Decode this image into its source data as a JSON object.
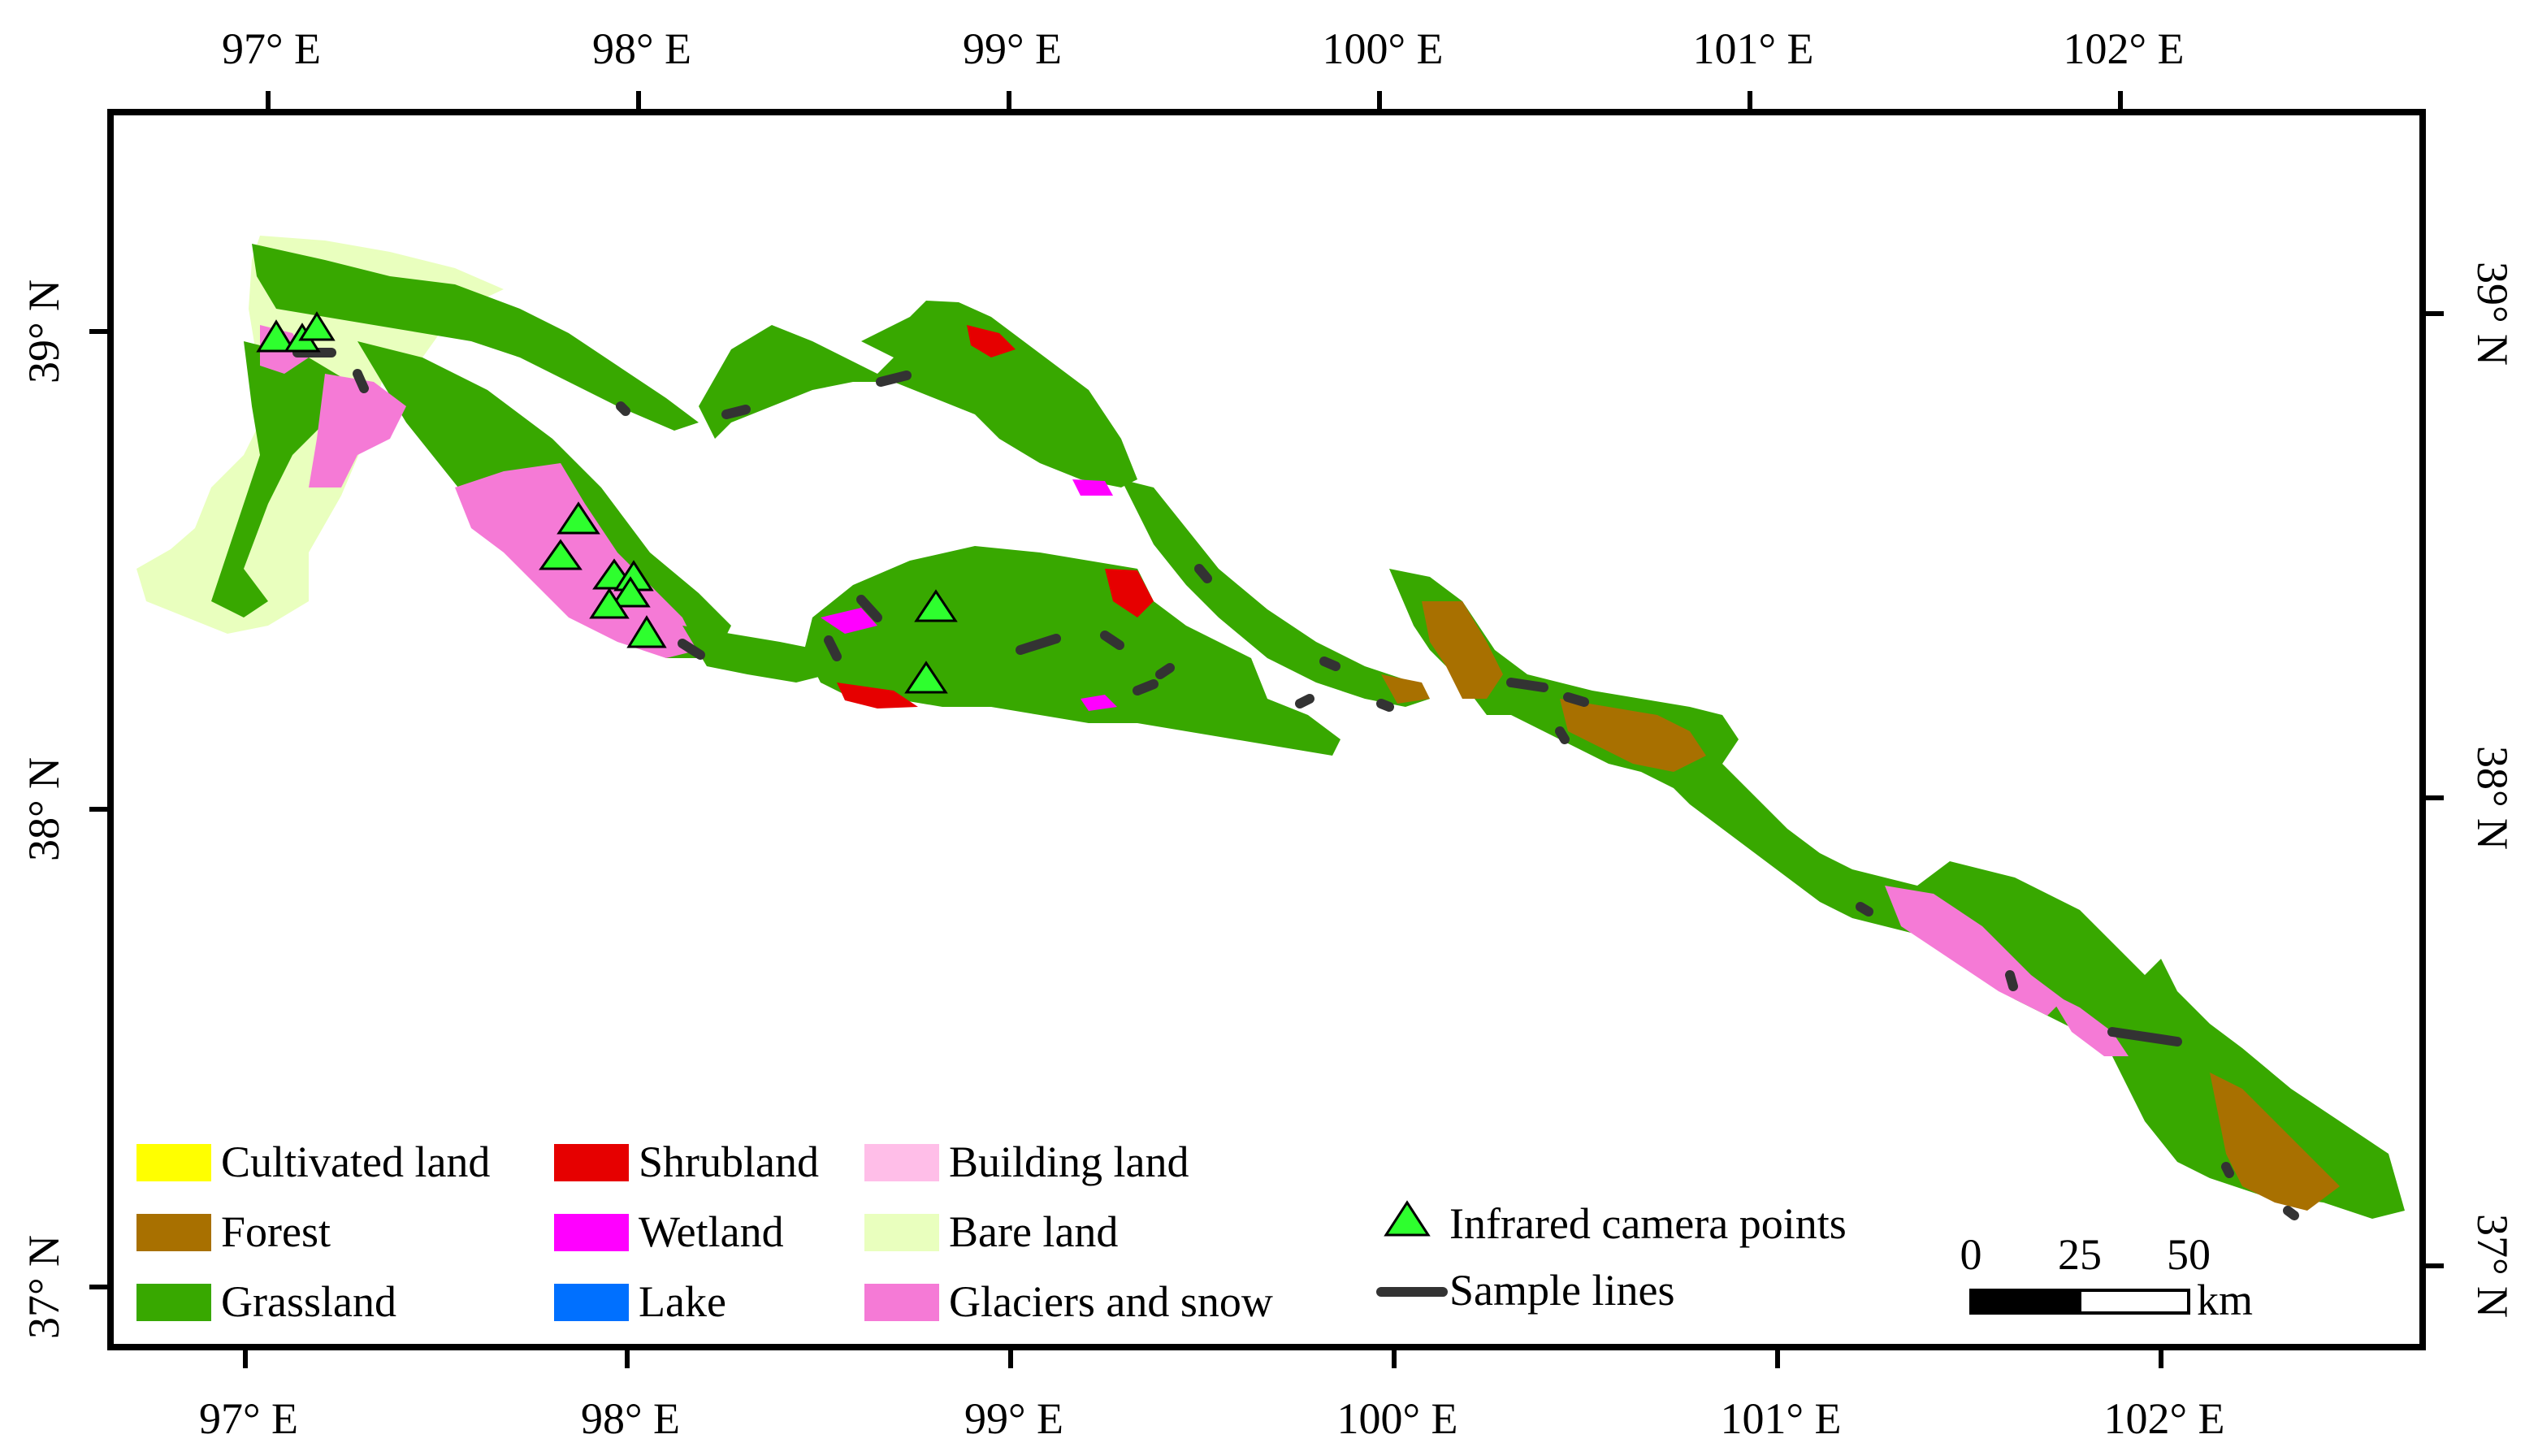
{
  "axes": {
    "longitude_labels": [
      "97° E",
      "98° E",
      "99° E",
      "100° E",
      "101° E",
      "102° E"
    ],
    "latitude_labels": [
      "39° N",
      "38° N",
      "37° N"
    ]
  },
  "colors": {
    "cultivated_land": "#ffff00",
    "forest": "#a87000",
    "grassland": "#38a800",
    "shrubland": "#e60000",
    "wetland": "#ff00ff",
    "lake": "#0070ff",
    "building_land": "#ffbee8",
    "bare_land": "#e9ffbe",
    "glaciers_and_snow": "#f57ad6",
    "camera_point": "#2eff2e",
    "sample_line": "#333333"
  },
  "legend": {
    "land_cover": [
      {
        "label": "Cultivated land",
        "color_key": "cultivated_land"
      },
      {
        "label": "Forest",
        "color_key": "forest"
      },
      {
        "label": "Grassland",
        "color_key": "grassland"
      },
      {
        "label": "Shrubland",
        "color_key": "shrubland"
      },
      {
        "label": "Wetland",
        "color_key": "wetland"
      },
      {
        "label": "Lake",
        "color_key": "lake"
      },
      {
        "label": "Building land",
        "color_key": "building_land"
      },
      {
        "label": "Bare land",
        "color_key": "bare_land"
      },
      {
        "label": "Glaciers and snow",
        "color_key": "glaciers_and_snow"
      }
    ],
    "camera_points": "Infrared camera points",
    "sample_lines": "Sample lines"
  },
  "scale_bar": {
    "ticks": [
      "0",
      "25",
      "50"
    ],
    "unit": "km"
  }
}
